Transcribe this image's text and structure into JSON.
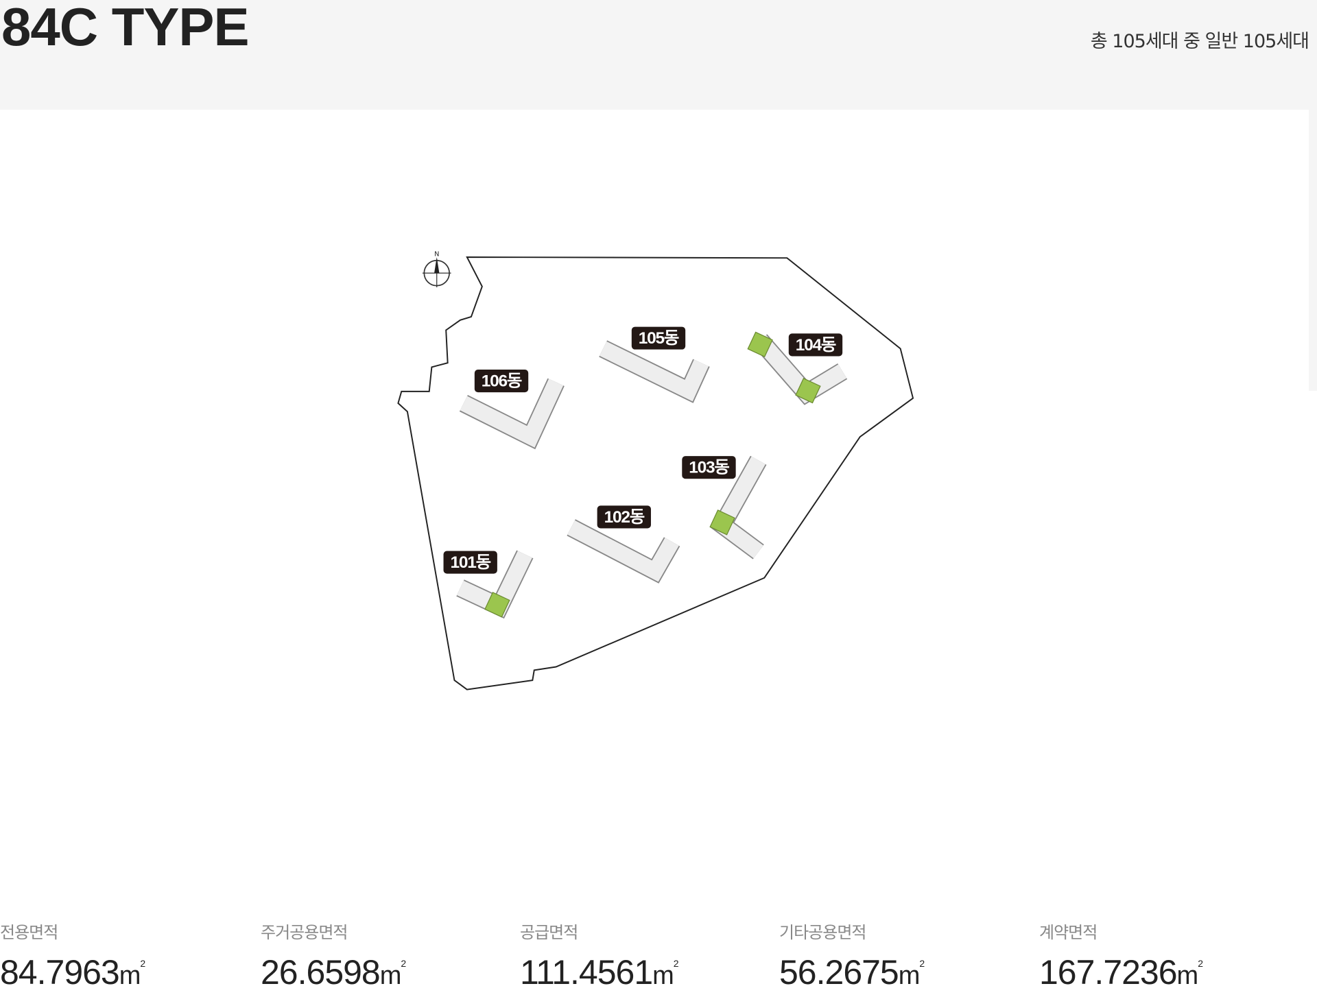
{
  "header": {
    "title": "84C TYPE",
    "subtitle": "총 105세대 중 일반 105세대"
  },
  "map": {
    "compass_label": "N",
    "highlight_color": "#9bc54e",
    "buildings": [
      {
        "label": "101동"
      },
      {
        "label": "102동"
      },
      {
        "label": "103동"
      },
      {
        "label": "104동"
      },
      {
        "label": "105동"
      },
      {
        "label": "106동"
      }
    ]
  },
  "areas": [
    {
      "label": "전용면적",
      "value": "84.7963",
      "unit": "m",
      "sup": "2"
    },
    {
      "label": "주거공용면적",
      "value": "26.6598",
      "unit": "m",
      "sup": "2"
    },
    {
      "label": "공급면적",
      "value": "111.4561",
      "unit": "m",
      "sup": "2"
    },
    {
      "label": "기타공용면적",
      "value": "56.2675",
      "unit": "m",
      "sup": "2"
    },
    {
      "label": "계약면적",
      "value": "167.7236",
      "unit": "m",
      "sup": "2"
    }
  ]
}
